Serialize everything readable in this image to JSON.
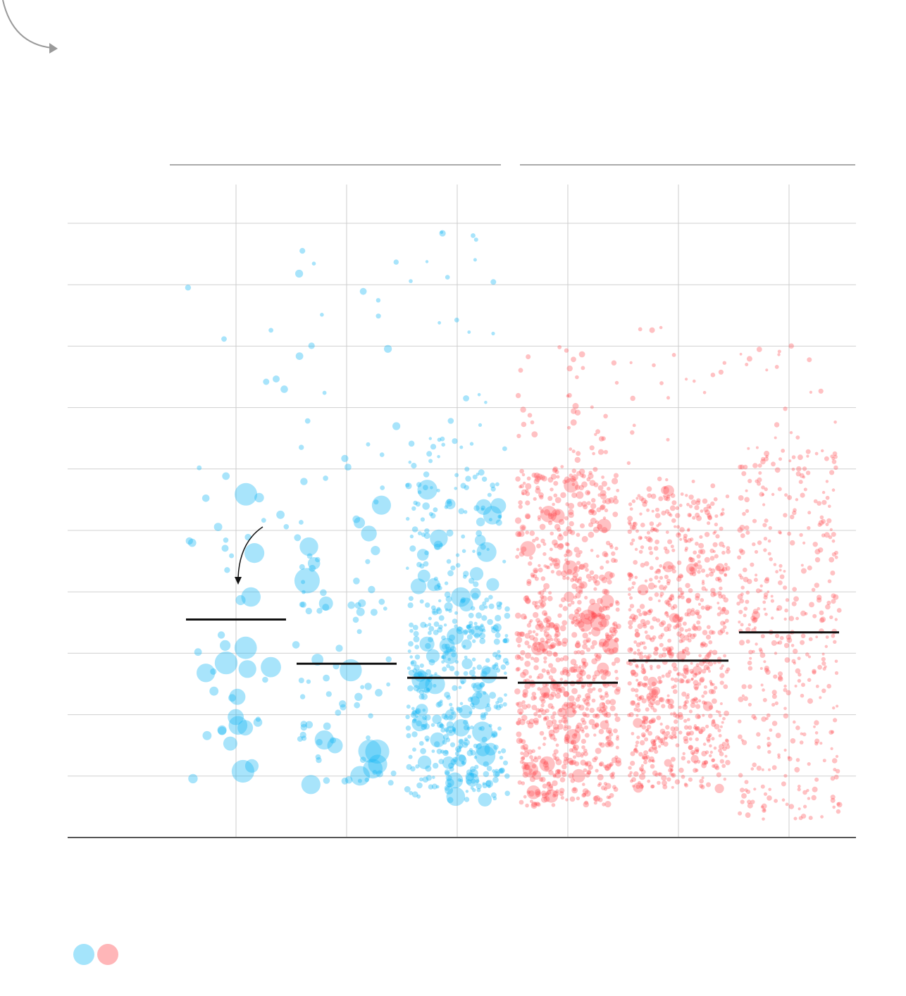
{
  "colors": {
    "blue": "#1ab8f5",
    "red": "#ff4a4f",
    "blue_legend": "#a4e4fb",
    "red_legend": "#ffb6b8",
    "median": "#111111"
  },
  "icons": {
    "decorative_arrow": "curved-arrow-icon",
    "annotation_arrow": "curved-pointer-arrow-icon"
  },
  "chart_data": {
    "type": "scatter",
    "title": "",
    "xlabel": "",
    "ylabel": "",
    "categories": [
      "",
      "",
      "",
      "",
      "",
      ""
    ],
    "ylim": [
      0,
      10
    ],
    "grid": true,
    "legend": "bottom-left",
    "series": [
      {
        "color": "blue",
        "jitter": 0.45,
        "medianY": 3.55,
        "seed": 11,
        "baseR": 6,
        "bigCount": 18,
        "bigMaxR": 17,
        "dist": [
          [
            1.5,
            6.5,
            18
          ],
          [
            4.5,
            6.5,
            8
          ],
          [
            6.5,
            9.0,
            6
          ]
        ]
      },
      {
        "color": "blue",
        "jitter": 0.45,
        "medianY": 2.83,
        "seed": 23,
        "baseR": 5,
        "bigCount": 22,
        "bigMaxR": 18,
        "dist": [
          [
            0.8,
            4.0,
            55
          ],
          [
            4.0,
            6.8,
            20
          ],
          [
            6.8,
            9.6,
            12
          ]
        ]
      },
      {
        "color": "blue",
        "jitter": 0.45,
        "medianY": 2.6,
        "seed": 37,
        "baseR": 4,
        "bigCount": 80,
        "bigMaxR": 15,
        "dist": [
          [
            0.6,
            3.9,
            330
          ],
          [
            3.9,
            6.5,
            90
          ],
          [
            6.5,
            10.0,
            18
          ]
        ]
      },
      {
        "color": "red",
        "jitter": 0.45,
        "medianY": 2.52,
        "seed": 41,
        "baseR": 4,
        "bigCount": 45,
        "bigMaxR": 12,
        "dist": [
          [
            0.5,
            3.5,
            520
          ],
          [
            3.5,
            6.0,
            300
          ],
          [
            6.0,
            8.0,
            40
          ]
        ]
      },
      {
        "color": "red",
        "jitter": 0.45,
        "medianY": 2.88,
        "seed": 53,
        "baseR": 3.5,
        "bigCount": 25,
        "bigMaxR": 8,
        "dist": [
          [
            0.8,
            3.5,
            480
          ],
          [
            3.5,
            5.6,
            300
          ],
          [
            5.6,
            8.4,
            25
          ]
        ]
      },
      {
        "color": "red",
        "jitter": 0.45,
        "medianY": 3.34,
        "seed": 67,
        "baseR": 3.5,
        "bigCount": 4,
        "bigMaxR": 6,
        "dist": [
          [
            0.3,
            3.5,
            200
          ],
          [
            3.5,
            6.3,
            200
          ],
          [
            6.3,
            8.2,
            20
          ]
        ]
      }
    ]
  }
}
